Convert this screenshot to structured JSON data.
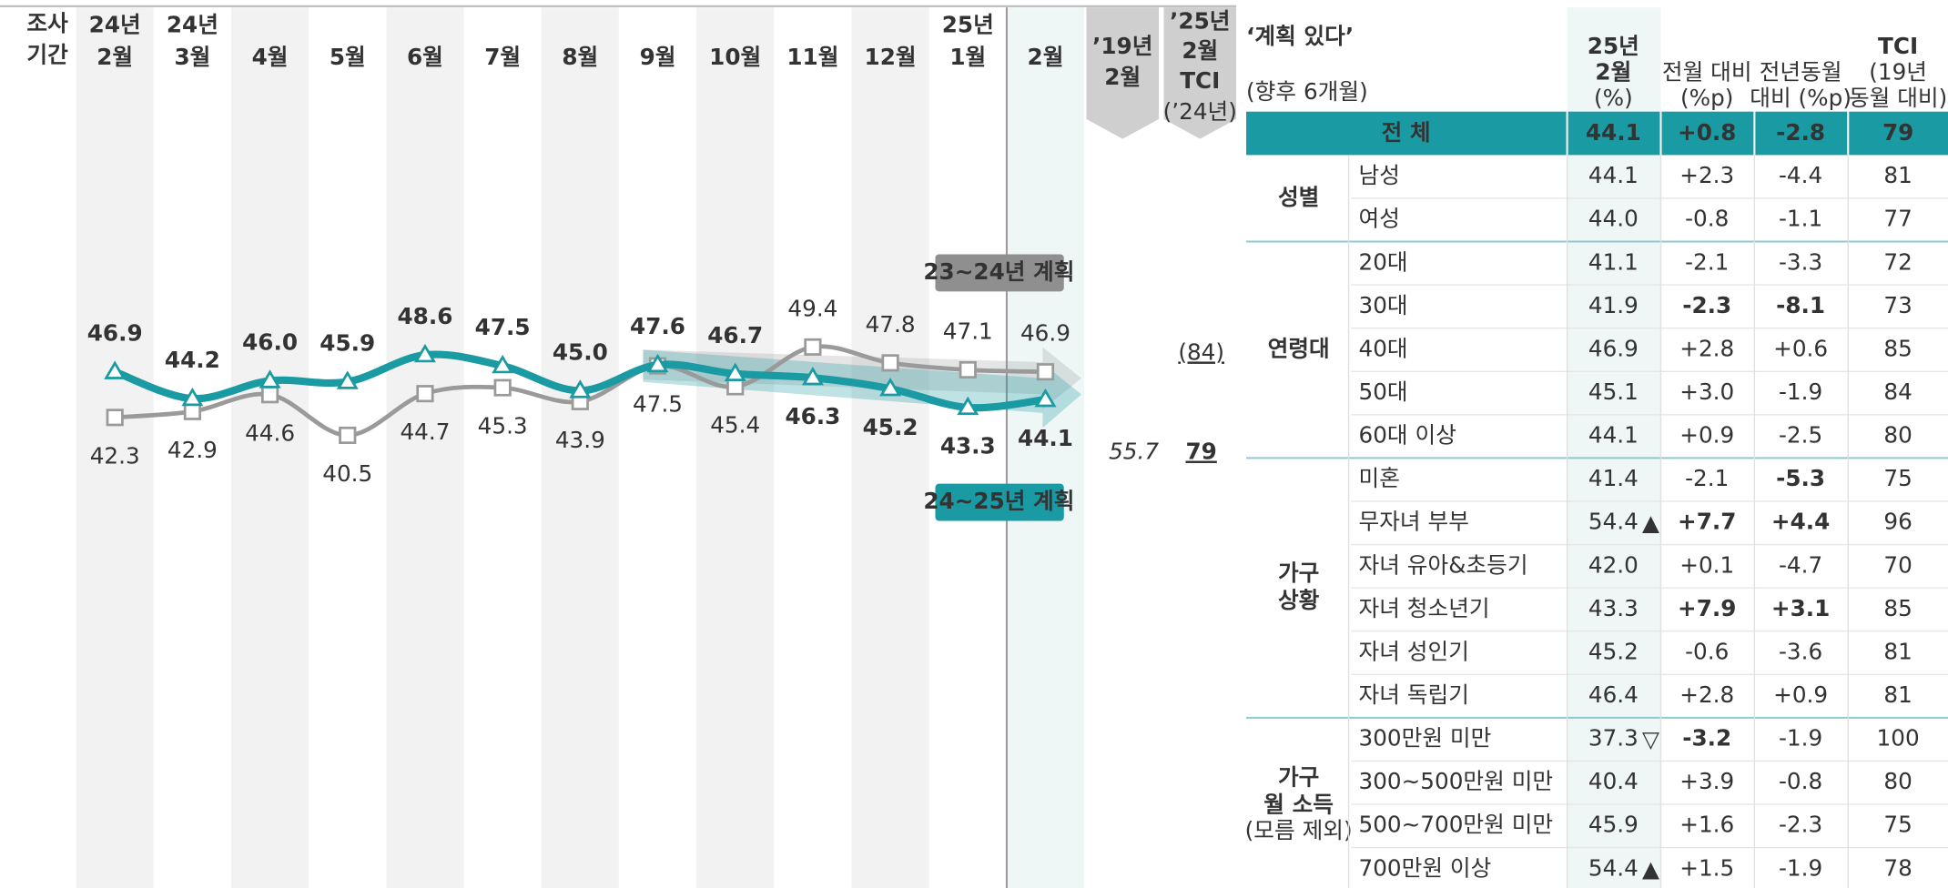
{
  "chart_data": {
    "type": "line",
    "axis_label": [
      "조사",
      "기간"
    ],
    "categories": [
      [
        "24년",
        "2월"
      ],
      [
        "24년",
        "3월"
      ],
      [
        "4월"
      ],
      [
        "5월"
      ],
      [
        "6월"
      ],
      [
        "7월"
      ],
      [
        "8월"
      ],
      [
        "9월"
      ],
      [
        "10월"
      ],
      [
        "11월"
      ],
      [
        "12월"
      ],
      [
        "25년",
        "1월"
      ],
      [
        "2월"
      ]
    ],
    "series": [
      {
        "name": "24~25년 계획",
        "color": "#1a9aa3",
        "values": [
          46.9,
          44.2,
          46.0,
          45.9,
          48.6,
          47.5,
          45.0,
          47.6,
          46.7,
          46.3,
          45.2,
          43.3,
          44.1
        ],
        "value_labels": [
          "46.9",
          "44.2",
          "46.0",
          "45.9",
          "48.6",
          "47.5",
          "45.0",
          "47.6",
          "46.7",
          "46.3",
          "45.2",
          "43.3",
          "44.1"
        ]
      },
      {
        "name": "23~24년 계획",
        "color": "#9a9a9a",
        "values": [
          42.3,
          42.9,
          44.6,
          40.5,
          44.7,
          45.3,
          43.9,
          47.5,
          45.4,
          49.4,
          47.8,
          47.1,
          46.9
        ]
      }
    ],
    "ylim": [
      35,
      55
    ],
    "comparison": {
      "label": [
        "’19년",
        "2월"
      ],
      "value": 55.7
    },
    "tci": {
      "label": [
        "’25년",
        "2월",
        "TCI"
      ],
      "sublabel": "(’24년)",
      "value": 79,
      "prior": 84,
      "prior_label": "(84)"
    }
  },
  "table": {
    "title": "‘계획 있다’",
    "subtitle": "(향후 6개월)",
    "columns": [
      [
        "25년",
        "2월",
        "(%)"
      ],
      [
        "전월 대비",
        "(%p)"
      ],
      [
        "전년동월",
        "대비 (%p)"
      ],
      [
        "TCI",
        "(19년",
        "동월 대비)"
      ]
    ],
    "total": {
      "label": "전 체",
      "cells": [
        "44.1",
        "+0.8",
        "-2.8",
        "79"
      ]
    },
    "groups": [
      {
        "label": [
          "성별"
        ],
        "rows": [
          {
            "label": "남성",
            "cells": [
              "44.1",
              "+2.3",
              "-4.4",
              "81"
            ]
          },
          {
            "label": "여성",
            "cells": [
              "44.0",
              "-0.8",
              "-1.1",
              "77"
            ]
          }
        ]
      },
      {
        "label": [
          "연령대"
        ],
        "rows": [
          {
            "label": "20대",
            "cells": [
              "41.1",
              "-2.1",
              "-3.3",
              "72"
            ]
          },
          {
            "label": "30대",
            "cells": [
              "41.9",
              "-2.3",
              "-8.1",
              "73"
            ],
            "emphasis": {
              "1": "#1d5ad6",
              "2": "#1d5ad6"
            }
          },
          {
            "label": "40대",
            "cells": [
              "46.9",
              "+2.8",
              "+0.6",
              "85"
            ]
          },
          {
            "label": "50대",
            "cells": [
              "45.1",
              "+3.0",
              "-1.9",
              "84"
            ]
          },
          {
            "label": "60대 이상",
            "cells": [
              "44.1",
              "+0.9",
              "-2.5",
              "80"
            ]
          }
        ]
      },
      {
        "label": [
          "가구",
          "상황"
        ],
        "rows": [
          {
            "label": "미혼",
            "cells": [
              "41.4",
              "-2.1",
              "-5.3",
              "75"
            ],
            "emphasis": {
              "2": "#1d5ad6"
            }
          },
          {
            "label": "무자녀 부부",
            "cells": [
              "54.4",
              "+7.7",
              "+4.4",
              "96"
            ],
            "flag": "▲",
            "emphasis": {
              "1": "#e8201f",
              "2": "#e8201f"
            }
          },
          {
            "label": "자녀 유아&초등기",
            "cells": [
              "42.0",
              "+0.1",
              "-4.7",
              "70"
            ]
          },
          {
            "label": "자녀 청소년기",
            "cells": [
              "43.3",
              "+7.9",
              "+3.1",
              "85"
            ],
            "emphasis": {
              "1": "#e8201f",
              "2": "#e8201f"
            }
          },
          {
            "label": "자녀 성인기",
            "cells": [
              "45.2",
              "-0.6",
              "-3.6",
              "81"
            ]
          },
          {
            "label": "자녀 독립기",
            "cells": [
              "46.4",
              "+2.8",
              "+0.9",
              "81"
            ]
          }
        ]
      },
      {
        "label": [
          "가구",
          "월 소득"
        ],
        "note": "(모름 제외)",
        "rows": [
          {
            "label": "300만원 미만",
            "cells": [
              "37.3",
              "-3.2",
              "-1.9",
              "100"
            ],
            "flag": "▽",
            "emphasis": {
              "1": "#1d5ad6"
            }
          },
          {
            "label": "300~500만원 미만",
            "cells": [
              "40.4",
              "+3.9",
              "-0.8",
              "80"
            ]
          },
          {
            "label": "500~700만원 미만",
            "cells": [
              "45.9",
              "+1.6",
              "-2.3",
              "75"
            ]
          },
          {
            "label": "700만원 이상",
            "cells": [
              "54.4",
              "+1.5",
              "-1.9",
              "78"
            ],
            "flag": "▲"
          }
        ]
      }
    ]
  }
}
